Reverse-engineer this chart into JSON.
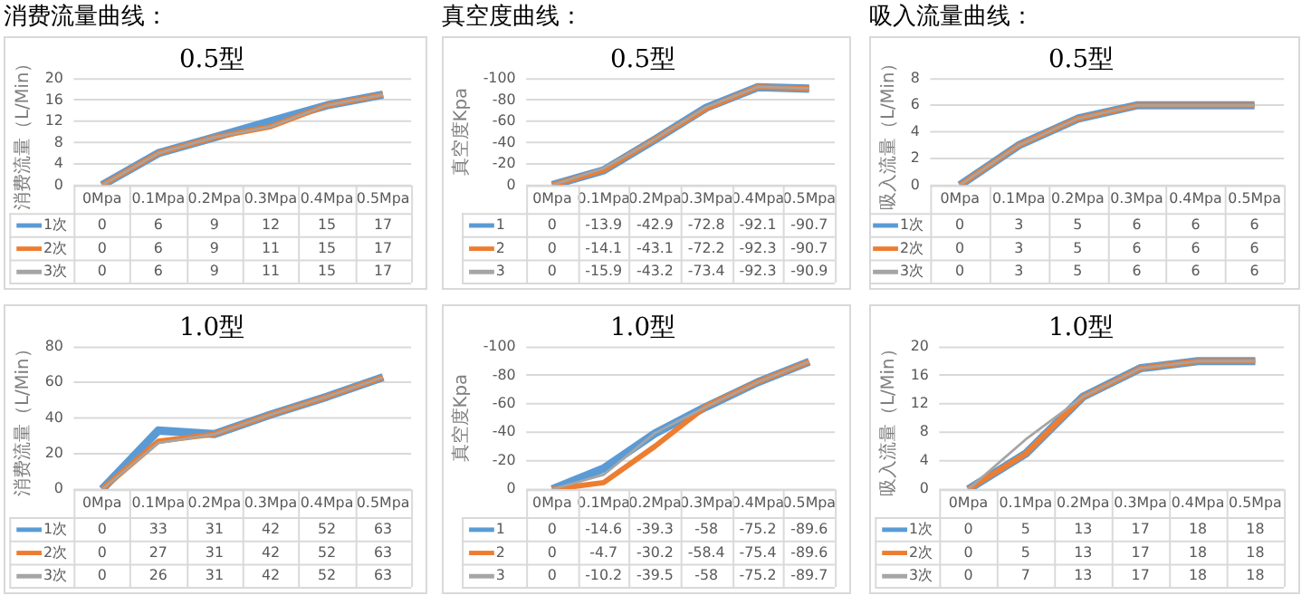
{
  "chart_data": [
    {
      "type": "line",
      "title": "0.5型",
      "ylabel": "消费流量（L/Min）",
      "annotations": [
        "消费流量曲线："
      ],
      "categories": [
        "0Mpa",
        "0.1Mpa",
        "0.2Mpa",
        "0.3Mpa",
        "0.4Mpa",
        "0.5Mpa"
      ],
      "series": [
        {
          "name": "1次",
          "color": "#5b9bd5",
          "values": [
            0,
            6,
            9,
            12,
            15,
            17
          ]
        },
        {
          "name": "2次",
          "color": "#ed7d31",
          "values": [
            0,
            6,
            9,
            11,
            15,
            17
          ]
        },
        {
          "name": "3次",
          "color": "#a5a5a5",
          "values": [
            0,
            6,
            9,
            11,
            15,
            17
          ]
        }
      ],
      "ylim": [
        0,
        20
      ],
      "yticks": [
        0,
        4,
        8,
        12,
        16,
        20
      ],
      "grid": "y",
      "legend": "bottom",
      "data_labels": true
    },
    {
      "type": "line",
      "title": "0.5型",
      "ylabel": "真空度Kpa",
      "annotations": [
        "真空度曲线："
      ],
      "categories": [
        "0Mpa",
        "0.1Mpa",
        "0.2Mpa",
        "0.3Mpa",
        "0.4Mpa",
        "0.5Mpa"
      ],
      "series": [
        {
          "name": "1",
          "color": "#5b9bd5",
          "values": [
            0,
            -13.9,
            -42.9,
            -72.8,
            -92.1,
            -90.7
          ]
        },
        {
          "name": "2",
          "color": "#ed7d31",
          "values": [
            0,
            -14.1,
            -43.1,
            -72.2,
            -92.3,
            -90.7
          ]
        },
        {
          "name": "3",
          "color": "#a5a5a5",
          "values": [
            0,
            -15.9,
            -43.2,
            -73.4,
            -92.3,
            -90.9
          ]
        }
      ],
      "ylim": [
        0,
        -100
      ],
      "yticks": [
        0,
        -20,
        -40,
        -60,
        -80,
        -100
      ],
      "grid": "y",
      "legend": "bottom",
      "data_labels": true
    },
    {
      "type": "line",
      "title": "0.5型",
      "ylabel": "吸入流量（L/Min）",
      "annotations": [
        "吸入流量曲线："
      ],
      "categories": [
        "0Mpa",
        "0.1Mpa",
        "0.2Mpa",
        "0.3Mpa",
        "0.4Mpa",
        "0.5Mpa"
      ],
      "series": [
        {
          "name": "1次",
          "color": "#5b9bd5",
          "values": [
            0,
            3,
            5,
            6,
            6,
            6
          ]
        },
        {
          "name": "2次",
          "color": "#ed7d31",
          "values": [
            0,
            3,
            5,
            6,
            6,
            6
          ]
        },
        {
          "name": "3次",
          "color": "#a5a5a5",
          "values": [
            0,
            3,
            5,
            6,
            6,
            6
          ]
        }
      ],
      "ylim": [
        0,
        8
      ],
      "yticks": [
        0,
        2,
        4,
        6,
        8
      ],
      "grid": "y",
      "legend": "bottom",
      "data_labels": true
    },
    {
      "type": "line",
      "title": "1.0型",
      "ylabel": "消费流量（L/Min）",
      "categories": [
        "0Mpa",
        "0.1Mpa",
        "0.2Mpa",
        "0.3Mpa",
        "0.4Mpa",
        "0.5Mpa"
      ],
      "series": [
        {
          "name": "1次",
          "color": "#5b9bd5",
          "values": [
            0,
            33,
            31,
            42,
            52,
            63
          ]
        },
        {
          "name": "2次",
          "color": "#ed7d31",
          "values": [
            0,
            27,
            31,
            42,
            52,
            63
          ]
        },
        {
          "name": "3次",
          "color": "#a5a5a5",
          "values": [
            0,
            26,
            31,
            42,
            52,
            63
          ]
        }
      ],
      "ylim": [
        0,
        80
      ],
      "yticks": [
        0,
        20,
        40,
        60,
        80
      ],
      "grid": "y",
      "legend": "bottom",
      "data_labels": true
    },
    {
      "type": "line",
      "title": "1.0型",
      "ylabel": "真空度Kpa",
      "categories": [
        "0Mpa",
        "0.1Mpa",
        "0.2Mpa",
        "0.3Mpa",
        "0.4Mpa",
        "0.5Mpa"
      ],
      "series": [
        {
          "name": "1",
          "color": "#5b9bd5",
          "values": [
            0,
            -14.6,
            -39.3,
            -58,
            -75.2,
            -89.6
          ]
        },
        {
          "name": "2",
          "color": "#ed7d31",
          "values": [
            0,
            -4.7,
            -30.2,
            -58.4,
            -75.4,
            -89.6
          ]
        },
        {
          "name": "3",
          "color": "#a5a5a5",
          "values": [
            0,
            -10.2,
            -39.5,
            -58,
            -75.2,
            -89.7
          ]
        }
      ],
      "ylim": [
        0,
        -100
      ],
      "yticks": [
        0,
        -20,
        -40,
        -60,
        -80,
        -100
      ],
      "grid": "y",
      "legend": "bottom",
      "data_labels": true
    },
    {
      "type": "line",
      "title": "1.0型",
      "ylabel": "吸入流量（L/Min）",
      "categories": [
        "0Mpa",
        "0.1Mpa",
        "0.2Mpa",
        "0.3Mpa",
        "0.4Mpa",
        "0.5Mpa"
      ],
      "series": [
        {
          "name": "1次",
          "color": "#5b9bd5",
          "values": [
            0,
            5,
            13,
            17,
            18,
            18
          ]
        },
        {
          "name": "2次",
          "color": "#ed7d31",
          "values": [
            0,
            5,
            13,
            17,
            18,
            18
          ]
        },
        {
          "name": "3次",
          "color": "#a5a5a5",
          "values": [
            0,
            7,
            13,
            17,
            18,
            18
          ]
        }
      ],
      "ylim": [
        0,
        20
      ],
      "yticks": [
        0,
        4,
        8,
        12,
        16,
        20
      ],
      "grid": "y",
      "legend": "bottom",
      "data_labels": true
    }
  ]
}
